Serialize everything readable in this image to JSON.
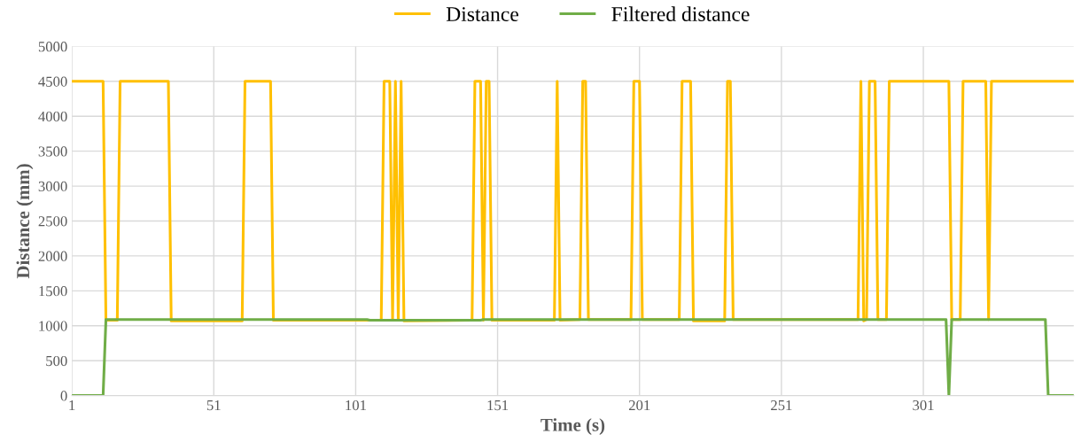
{
  "chart_data": {
    "type": "line",
    "xlabel": "Time (s)",
    "ylabel": "Distance (mm)",
    "xlim": [
      1,
      354
    ],
    "xticks": [
      1,
      51,
      101,
      151,
      201,
      251,
      301
    ],
    "ylim": [
      0,
      5000
    ],
    "yticks": [
      0,
      500,
      1000,
      1500,
      2000,
      2500,
      3000,
      3500,
      4000,
      4500,
      5000
    ],
    "grid": true,
    "legend": "top",
    "marker": "none",
    "line_style": "solid",
    "series": [
      {
        "name": "Distance",
        "color": "#ffc000",
        "x": [
          1,
          12,
          13,
          17,
          18,
          35,
          36,
          61,
          62,
          71,
          72,
          110,
          111,
          113,
          114,
          115,
          116,
          117,
          118,
          142,
          143,
          145,
          146,
          147,
          148,
          149,
          171,
          172,
          173,
          180,
          181,
          182,
          183,
          198,
          199,
          201,
          202,
          215,
          216,
          219,
          220,
          231,
          232,
          233,
          234,
          278,
          279,
          280,
          281,
          282,
          284,
          285,
          288,
          289,
          310,
          311,
          314,
          315,
          323,
          324,
          325,
          354
        ],
        "values": [
          4500,
          4500,
          1080,
          1080,
          4500,
          4500,
          1070,
          1070,
          4500,
          4500,
          1080,
          1080,
          4500,
          4500,
          1080,
          4500,
          1080,
          4500,
          1070,
          1080,
          4500,
          4500,
          1080,
          4500,
          4500,
          1080,
          1080,
          4500,
          1080,
          1090,
          4500,
          4500,
          1090,
          1090,
          4500,
          4500,
          1090,
          1090,
          4500,
          4500,
          1070,
          1070,
          4500,
          4500,
          1090,
          1090,
          4500,
          1070,
          1090,
          4500,
          4500,
          1090,
          1090,
          4500,
          4500,
          1090,
          1090,
          4500,
          4500,
          1090,
          4500,
          4500
        ]
      },
      {
        "name": "Filtered distance",
        "color": "#70ad47",
        "x": [
          1,
          12,
          13,
          105,
          106,
          145,
          146,
          309,
          310,
          311,
          344,
          345,
          354
        ],
        "values": [
          0,
          0,
          1090,
          1090,
          1080,
          1080,
          1090,
          1090,
          0,
          1090,
          1090,
          0,
          0
        ]
      }
    ]
  }
}
